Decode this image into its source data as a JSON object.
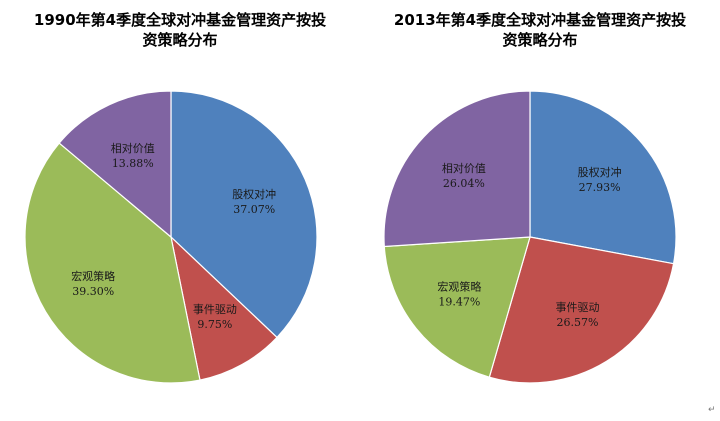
{
  "chart_data": [
    {
      "type": "pie",
      "title": "1990年第4季度全球对冲基金管理资产按投资策略分布",
      "title_lines": [
        "1990年第4季度全球对冲基金管理资产按投",
        "资策略分布"
      ],
      "slices": [
        {
          "label": "股权对冲",
          "value": 37.07,
          "value_text": "37.07%",
          "color": "#4F81BD"
        },
        {
          "label": "事件驱动",
          "value": 9.75,
          "value_text": "9.75%",
          "color": "#C0504D"
        },
        {
          "label": "宏观策略",
          "value": 39.3,
          "value_text": "39.30%",
          "color": "#9BBB59"
        },
        {
          "label": "相对价值",
          "value": 13.88,
          "value_text": "13.88%",
          "color": "#8064A2"
        }
      ],
      "start": "12 o'clock",
      "direction": "clockwise",
      "legend": "none"
    },
    {
      "type": "pie",
      "title": "2013年第4季度全球对冲基金管理资产按投资策略分布",
      "title_lines": [
        "2013年第4季度全球对冲基金管理资产按投",
        "资策略分布"
      ],
      "slices": [
        {
          "label": "股权对冲",
          "value": 27.93,
          "value_text": "27.93%",
          "color": "#4F81BD"
        },
        {
          "label": "事件驱动",
          "value": 26.57,
          "value_text": "26.57%",
          "color": "#C0504D"
        },
        {
          "label": "宏观策略",
          "value": 19.47,
          "value_text": "19.47%",
          "color": "#9BBB59"
        },
        {
          "label": "相对价值",
          "value": 26.04,
          "value_text": "26.04%",
          "color": "#8064A2"
        }
      ],
      "start": "12 o'clock",
      "direction": "clockwise",
      "legend": "none"
    }
  ],
  "page_mark": "↵"
}
